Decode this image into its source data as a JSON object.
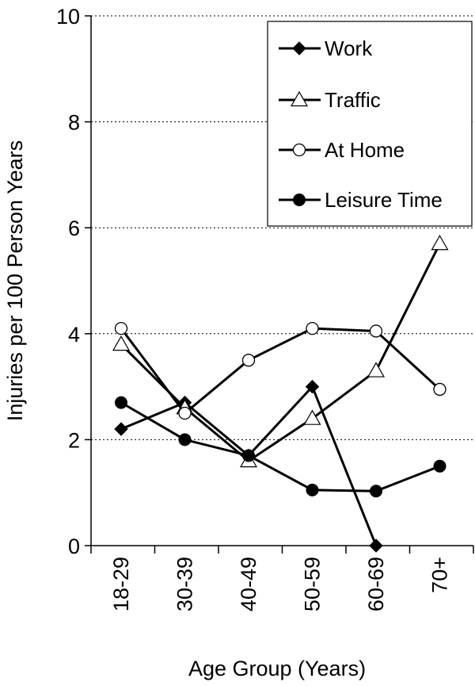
{
  "chart_data": {
    "type": "line",
    "xlabel": "Age Group (Years)",
    "ylabel": "Injuries per 100 Person Years",
    "ylim": [
      0,
      10
    ],
    "yticks": [
      0,
      2,
      4,
      6,
      8,
      10
    ],
    "grid": "horizontal dotted",
    "legend_position": "top-right",
    "categories": [
      "18-29",
      "30-39",
      "40-49",
      "50-59",
      "60-69",
      "70+"
    ],
    "series": [
      {
        "name": "Work",
        "marker": "diamond-filled",
        "values": [
          2.2,
          2.7,
          1.7,
          3.0,
          0.0,
          null
        ]
      },
      {
        "name": "Traffic",
        "marker": "triangle-open",
        "values": [
          3.8,
          2.6,
          1.6,
          2.4,
          3.3,
          5.7
        ]
      },
      {
        "name": "At Home",
        "marker": "circle-open",
        "values": [
          4.1,
          2.5,
          3.5,
          4.1,
          4.05,
          2.95
        ]
      },
      {
        "name": "Leisure Time",
        "marker": "circle-filled",
        "values": [
          2.7,
          2.0,
          1.7,
          1.05,
          1.03,
          1.5
        ]
      }
    ]
  }
}
